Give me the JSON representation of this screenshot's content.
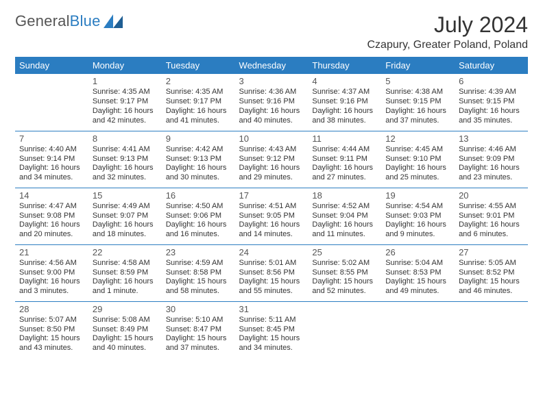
{
  "brand": {
    "part1": "General",
    "part2": "Blue"
  },
  "title": "July 2024",
  "subtitle": "Czapury, Greater Poland, Poland",
  "colors": {
    "accent": "#2b7dc1",
    "text": "#333333",
    "muted": "#555555",
    "bg": "#ffffff"
  },
  "dayNames": [
    "Sunday",
    "Monday",
    "Tuesday",
    "Wednesday",
    "Thursday",
    "Friday",
    "Saturday"
  ],
  "weeks": [
    [
      null,
      {
        "n": "1",
        "sr": "Sunrise: 4:35 AM",
        "ss": "Sunset: 9:17 PM",
        "dl": "Daylight: 16 hours and 42 minutes."
      },
      {
        "n": "2",
        "sr": "Sunrise: 4:35 AM",
        "ss": "Sunset: 9:17 PM",
        "dl": "Daylight: 16 hours and 41 minutes."
      },
      {
        "n": "3",
        "sr": "Sunrise: 4:36 AM",
        "ss": "Sunset: 9:16 PM",
        "dl": "Daylight: 16 hours and 40 minutes."
      },
      {
        "n": "4",
        "sr": "Sunrise: 4:37 AM",
        "ss": "Sunset: 9:16 PM",
        "dl": "Daylight: 16 hours and 38 minutes."
      },
      {
        "n": "5",
        "sr": "Sunrise: 4:38 AM",
        "ss": "Sunset: 9:15 PM",
        "dl": "Daylight: 16 hours and 37 minutes."
      },
      {
        "n": "6",
        "sr": "Sunrise: 4:39 AM",
        "ss": "Sunset: 9:15 PM",
        "dl": "Daylight: 16 hours and 35 minutes."
      }
    ],
    [
      {
        "n": "7",
        "sr": "Sunrise: 4:40 AM",
        "ss": "Sunset: 9:14 PM",
        "dl": "Daylight: 16 hours and 34 minutes."
      },
      {
        "n": "8",
        "sr": "Sunrise: 4:41 AM",
        "ss": "Sunset: 9:13 PM",
        "dl": "Daylight: 16 hours and 32 minutes."
      },
      {
        "n": "9",
        "sr": "Sunrise: 4:42 AM",
        "ss": "Sunset: 9:13 PM",
        "dl": "Daylight: 16 hours and 30 minutes."
      },
      {
        "n": "10",
        "sr": "Sunrise: 4:43 AM",
        "ss": "Sunset: 9:12 PM",
        "dl": "Daylight: 16 hours and 29 minutes."
      },
      {
        "n": "11",
        "sr": "Sunrise: 4:44 AM",
        "ss": "Sunset: 9:11 PM",
        "dl": "Daylight: 16 hours and 27 minutes."
      },
      {
        "n": "12",
        "sr": "Sunrise: 4:45 AM",
        "ss": "Sunset: 9:10 PM",
        "dl": "Daylight: 16 hours and 25 minutes."
      },
      {
        "n": "13",
        "sr": "Sunrise: 4:46 AM",
        "ss": "Sunset: 9:09 PM",
        "dl": "Daylight: 16 hours and 23 minutes."
      }
    ],
    [
      {
        "n": "14",
        "sr": "Sunrise: 4:47 AM",
        "ss": "Sunset: 9:08 PM",
        "dl": "Daylight: 16 hours and 20 minutes."
      },
      {
        "n": "15",
        "sr": "Sunrise: 4:49 AM",
        "ss": "Sunset: 9:07 PM",
        "dl": "Daylight: 16 hours and 18 minutes."
      },
      {
        "n": "16",
        "sr": "Sunrise: 4:50 AM",
        "ss": "Sunset: 9:06 PM",
        "dl": "Daylight: 16 hours and 16 minutes."
      },
      {
        "n": "17",
        "sr": "Sunrise: 4:51 AM",
        "ss": "Sunset: 9:05 PM",
        "dl": "Daylight: 16 hours and 14 minutes."
      },
      {
        "n": "18",
        "sr": "Sunrise: 4:52 AM",
        "ss": "Sunset: 9:04 PM",
        "dl": "Daylight: 16 hours and 11 minutes."
      },
      {
        "n": "19",
        "sr": "Sunrise: 4:54 AM",
        "ss": "Sunset: 9:03 PM",
        "dl": "Daylight: 16 hours and 9 minutes."
      },
      {
        "n": "20",
        "sr": "Sunrise: 4:55 AM",
        "ss": "Sunset: 9:01 PM",
        "dl": "Daylight: 16 hours and 6 minutes."
      }
    ],
    [
      {
        "n": "21",
        "sr": "Sunrise: 4:56 AM",
        "ss": "Sunset: 9:00 PM",
        "dl": "Daylight: 16 hours and 3 minutes."
      },
      {
        "n": "22",
        "sr": "Sunrise: 4:58 AM",
        "ss": "Sunset: 8:59 PM",
        "dl": "Daylight: 16 hours and 1 minute."
      },
      {
        "n": "23",
        "sr": "Sunrise: 4:59 AM",
        "ss": "Sunset: 8:58 PM",
        "dl": "Daylight: 15 hours and 58 minutes."
      },
      {
        "n": "24",
        "sr": "Sunrise: 5:01 AM",
        "ss": "Sunset: 8:56 PM",
        "dl": "Daylight: 15 hours and 55 minutes."
      },
      {
        "n": "25",
        "sr": "Sunrise: 5:02 AM",
        "ss": "Sunset: 8:55 PM",
        "dl": "Daylight: 15 hours and 52 minutes."
      },
      {
        "n": "26",
        "sr": "Sunrise: 5:04 AM",
        "ss": "Sunset: 8:53 PM",
        "dl": "Daylight: 15 hours and 49 minutes."
      },
      {
        "n": "27",
        "sr": "Sunrise: 5:05 AM",
        "ss": "Sunset: 8:52 PM",
        "dl": "Daylight: 15 hours and 46 minutes."
      }
    ],
    [
      {
        "n": "28",
        "sr": "Sunrise: 5:07 AM",
        "ss": "Sunset: 8:50 PM",
        "dl": "Daylight: 15 hours and 43 minutes."
      },
      {
        "n": "29",
        "sr": "Sunrise: 5:08 AM",
        "ss": "Sunset: 8:49 PM",
        "dl": "Daylight: 15 hours and 40 minutes."
      },
      {
        "n": "30",
        "sr": "Sunrise: 5:10 AM",
        "ss": "Sunset: 8:47 PM",
        "dl": "Daylight: 15 hours and 37 minutes."
      },
      {
        "n": "31",
        "sr": "Sunrise: 5:11 AM",
        "ss": "Sunset: 8:45 PM",
        "dl": "Daylight: 15 hours and 34 minutes."
      },
      null,
      null,
      null
    ]
  ]
}
